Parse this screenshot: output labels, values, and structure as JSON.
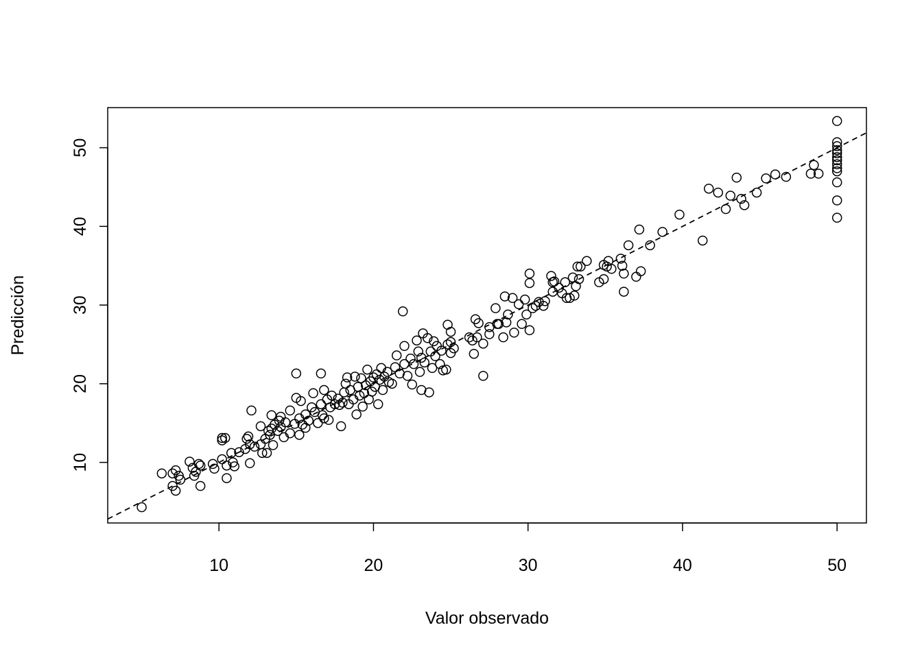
{
  "chart_data": {
    "type": "scatter",
    "title": "",
    "xlabel": "Valor observado",
    "ylabel": "Predicción",
    "xlim": [
      2.8,
      51.9
    ],
    "ylim": [
      2.3,
      55.1
    ],
    "xticks": [
      10,
      20,
      30,
      40,
      50
    ],
    "yticks": [
      10,
      20,
      30,
      40,
      50
    ],
    "grid": false,
    "reference_line": {
      "style": "dashed",
      "intercept": 0,
      "slope": 1,
      "description": "y = x"
    },
    "series": [
      {
        "marker": "open-circle",
        "color": "#000000",
        "points": [
          [
            5.0,
            4.3
          ],
          [
            6.3,
            8.6
          ],
          [
            7.0,
            7.0
          ],
          [
            7.0,
            8.6
          ],
          [
            7.2,
            6.4
          ],
          [
            7.2,
            9.0
          ],
          [
            7.4,
            8.3
          ],
          [
            7.5,
            7.8
          ],
          [
            8.1,
            10.1
          ],
          [
            8.3,
            9.3
          ],
          [
            8.4,
            8.3
          ],
          [
            8.5,
            8.8
          ],
          [
            8.7,
            9.8
          ],
          [
            8.8,
            7.0
          ],
          [
            8.8,
            9.6
          ],
          [
            9.6,
            9.8
          ],
          [
            9.7,
            9.2
          ],
          [
            10.2,
            10.4
          ],
          [
            10.2,
            12.8
          ],
          [
            10.2,
            13.1
          ],
          [
            10.4,
            13.1
          ],
          [
            10.5,
            8.0
          ],
          [
            10.5,
            9.6
          ],
          [
            10.8,
            11.2
          ],
          [
            10.9,
            10.0
          ],
          [
            11.0,
            9.5
          ],
          [
            11.3,
            11.3
          ],
          [
            11.7,
            11.7
          ],
          [
            11.8,
            13.0
          ],
          [
            11.9,
            13.3
          ],
          [
            12.0,
            9.9
          ],
          [
            12.0,
            12.3
          ],
          [
            12.1,
            16.6
          ],
          [
            12.3,
            12.0
          ],
          [
            12.7,
            12.3
          ],
          [
            12.7,
            14.6
          ],
          [
            12.8,
            11.2
          ],
          [
            13.0,
            13.0
          ],
          [
            13.1,
            11.2
          ],
          [
            13.2,
            14.0
          ],
          [
            13.3,
            13.5
          ],
          [
            13.4,
            14.3
          ],
          [
            13.4,
            16.0
          ],
          [
            13.5,
            12.2
          ],
          [
            13.6,
            14.8
          ],
          [
            13.8,
            14.0
          ],
          [
            13.9,
            15.3
          ],
          [
            14.0,
            14.5
          ],
          [
            14.0,
            15.8
          ],
          [
            14.2,
            13.2
          ],
          [
            14.3,
            15.1
          ],
          [
            14.6,
            13.7
          ],
          [
            14.6,
            16.6
          ],
          [
            14.9,
            14.9
          ],
          [
            15.0,
            18.2
          ],
          [
            15.0,
            21.3
          ],
          [
            15.2,
            13.5
          ],
          [
            15.2,
            15.6
          ],
          [
            15.3,
            17.8
          ],
          [
            15.4,
            14.8
          ],
          [
            15.6,
            16.1
          ],
          [
            15.6,
            14.4
          ],
          [
            15.8,
            15.3
          ],
          [
            16.0,
            17.0
          ],
          [
            16.1,
            18.8
          ],
          [
            16.2,
            16.4
          ],
          [
            16.4,
            15.0
          ],
          [
            16.6,
            21.3
          ],
          [
            16.6,
            17.4
          ],
          [
            16.7,
            16.0
          ],
          [
            16.8,
            19.2
          ],
          [
            16.8,
            15.6
          ],
          [
            17.0,
            18.0
          ],
          [
            17.1,
            15.4
          ],
          [
            17.2,
            17.0
          ],
          [
            17.3,
            18.5
          ],
          [
            17.5,
            17.4
          ],
          [
            17.7,
            18.1
          ],
          [
            17.8,
            17.3
          ],
          [
            17.9,
            14.6
          ],
          [
            18.0,
            17.6
          ],
          [
            18.1,
            18.9
          ],
          [
            18.2,
            20.0
          ],
          [
            18.3,
            20.8
          ],
          [
            18.4,
            17.4
          ],
          [
            18.5,
            19.2
          ],
          [
            18.7,
            18.0
          ],
          [
            18.8,
            20.9
          ],
          [
            18.9,
            16.1
          ],
          [
            19.0,
            19.6
          ],
          [
            19.1,
            18.5
          ],
          [
            19.2,
            20.7
          ],
          [
            19.3,
            17.1
          ],
          [
            19.4,
            18.8
          ],
          [
            19.5,
            19.8
          ],
          [
            19.6,
            21.8
          ],
          [
            19.7,
            18.0
          ],
          [
            19.8,
            20.3
          ],
          [
            19.9,
            19.0
          ],
          [
            20.0,
            20.8
          ],
          [
            20.1,
            19.6
          ],
          [
            20.2,
            21.2
          ],
          [
            20.3,
            17.4
          ],
          [
            20.4,
            20.5
          ],
          [
            20.5,
            22.0
          ],
          [
            20.6,
            19.2
          ],
          [
            20.7,
            20.9
          ],
          [
            20.9,
            21.5
          ],
          [
            21.0,
            20.2
          ],
          [
            21.2,
            20.0
          ],
          [
            21.4,
            22.1
          ],
          [
            21.5,
            23.6
          ],
          [
            21.7,
            21.3
          ],
          [
            21.9,
            29.2
          ],
          [
            22.0,
            24.8
          ],
          [
            22.0,
            22.5
          ],
          [
            22.2,
            21.0
          ],
          [
            22.4,
            23.2
          ],
          [
            22.5,
            19.9
          ],
          [
            22.6,
            22.5
          ],
          [
            22.8,
            25.5
          ],
          [
            22.9,
            24.1
          ],
          [
            23.0,
            21.5
          ],
          [
            23.1,
            19.2
          ],
          [
            23.1,
            23.3
          ],
          [
            23.2,
            26.4
          ],
          [
            23.3,
            22.7
          ],
          [
            23.5,
            25.8
          ],
          [
            23.6,
            18.9
          ],
          [
            23.7,
            24.1
          ],
          [
            23.8,
            22.0
          ],
          [
            23.9,
            25.4
          ],
          [
            24.0,
            23.5
          ],
          [
            24.1,
            24.8
          ],
          [
            24.3,
            22.5
          ],
          [
            24.4,
            24.2
          ],
          [
            24.5,
            21.7
          ],
          [
            24.7,
            21.8
          ],
          [
            24.8,
            25.0
          ],
          [
            24.8,
            27.5
          ],
          [
            25.0,
            23.9
          ],
          [
            25.0,
            25.3
          ],
          [
            25.0,
            26.6
          ],
          [
            25.2,
            24.5
          ],
          [
            26.2,
            25.9
          ],
          [
            26.4,
            25.5
          ],
          [
            26.5,
            23.8
          ],
          [
            26.6,
            28.2
          ],
          [
            26.7,
            25.9
          ],
          [
            26.8,
            27.7
          ],
          [
            27.1,
            21.0
          ],
          [
            27.1,
            25.1
          ],
          [
            27.5,
            26.3
          ],
          [
            27.5,
            27.2
          ],
          [
            27.9,
            29.6
          ],
          [
            28.0,
            27.6
          ],
          [
            28.1,
            27.6
          ],
          [
            28.4,
            25.9
          ],
          [
            28.5,
            31.1
          ],
          [
            28.6,
            27.8
          ],
          [
            28.7,
            28.8
          ],
          [
            29.0,
            30.9
          ],
          [
            29.1,
            26.5
          ],
          [
            29.4,
            30.1
          ],
          [
            29.6,
            27.6
          ],
          [
            29.8,
            30.7
          ],
          [
            29.9,
            28.8
          ],
          [
            30.1,
            34.0
          ],
          [
            30.1,
            32.8
          ],
          [
            30.1,
            26.8
          ],
          [
            30.3,
            29.6
          ],
          [
            30.5,
            29.9
          ],
          [
            30.7,
            30.4
          ],
          [
            31.0,
            29.9
          ],
          [
            31.1,
            30.5
          ],
          [
            31.5,
            33.7
          ],
          [
            31.6,
            31.7
          ],
          [
            31.6,
            32.9
          ],
          [
            31.7,
            33.0
          ],
          [
            32.0,
            32.2
          ],
          [
            32.2,
            31.5
          ],
          [
            32.4,
            32.9
          ],
          [
            32.5,
            30.9
          ],
          [
            32.7,
            30.9
          ],
          [
            32.9,
            33.5
          ],
          [
            33.0,
            31.2
          ],
          [
            33.1,
            32.4
          ],
          [
            33.2,
            34.9
          ],
          [
            33.3,
            33.3
          ],
          [
            33.4,
            34.9
          ],
          [
            33.8,
            35.6
          ],
          [
            34.6,
            32.9
          ],
          [
            34.9,
            35.1
          ],
          [
            34.9,
            33.3
          ],
          [
            35.1,
            34.9
          ],
          [
            35.2,
            35.6
          ],
          [
            35.4,
            34.6
          ],
          [
            36.0,
            35.9
          ],
          [
            36.1,
            35.0
          ],
          [
            36.2,
            31.7
          ],
          [
            36.2,
            34.0
          ],
          [
            36.5,
            37.6
          ],
          [
            37.0,
            33.6
          ],
          [
            37.2,
            39.6
          ],
          [
            37.3,
            34.3
          ],
          [
            37.9,
            37.6
          ],
          [
            38.7,
            39.3
          ],
          [
            39.8,
            41.5
          ],
          [
            41.3,
            38.2
          ],
          [
            41.7,
            44.8
          ],
          [
            42.3,
            44.3
          ],
          [
            42.8,
            42.2
          ],
          [
            43.1,
            43.9
          ],
          [
            43.5,
            46.2
          ],
          [
            43.8,
            43.5
          ],
          [
            44.0,
            42.7
          ],
          [
            44.8,
            44.3
          ],
          [
            45.4,
            46.1
          ],
          [
            46.0,
            46.6
          ],
          [
            46.7,
            46.3
          ],
          [
            48.3,
            46.7
          ],
          [
            48.5,
            47.8
          ],
          [
            48.8,
            46.7
          ],
          [
            50.0,
            53.4
          ],
          [
            50.0,
            50.7
          ],
          [
            50.0,
            50.2
          ],
          [
            50.0,
            49.7
          ],
          [
            50.0,
            49.3
          ],
          [
            50.0,
            48.8
          ],
          [
            50.0,
            48.4
          ],
          [
            50.0,
            47.9
          ],
          [
            50.0,
            47.4
          ],
          [
            50.0,
            47.0
          ],
          [
            50.0,
            45.6
          ],
          [
            50.0,
            43.3
          ],
          [
            50.0,
            41.1
          ]
        ]
      }
    ]
  }
}
